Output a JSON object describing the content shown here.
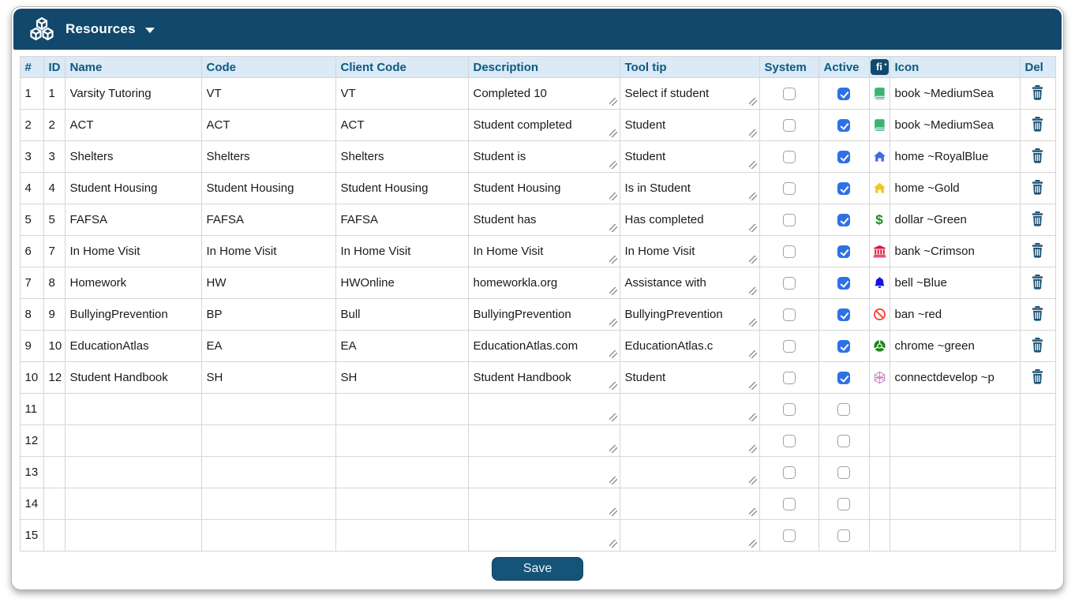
{
  "header": {
    "title": "Resources"
  },
  "table": {
    "columns": [
      "#",
      "ID",
      "Name",
      "Code",
      "Client Code",
      "Description",
      "Tool tip",
      "System",
      "Active",
      "Icon",
      "Del"
    ],
    "fi_badge": "fi",
    "rows": [
      {
        "num": "1",
        "id": "1",
        "name": "Varsity Tutoring",
        "code": "VT",
        "client_code": "VT",
        "description": "Completed 10",
        "tooltip": "Select if student",
        "system": false,
        "active": true,
        "glyph": "book",
        "glyph_color": "#3CB371",
        "icon_value": "book ~MediumSea"
      },
      {
        "num": "2",
        "id": "2",
        "name": "ACT",
        "code": "ACT",
        "client_code": "ACT",
        "description": "Student completed",
        "tooltip": "Student",
        "system": false,
        "active": true,
        "glyph": "book",
        "glyph_color": "#3CB371",
        "icon_value": "book ~MediumSea"
      },
      {
        "num": "3",
        "id": "3",
        "name": "Shelters",
        "code": "Shelters",
        "client_code": "Shelters",
        "description": "Student is",
        "tooltip": "Student",
        "system": false,
        "active": true,
        "glyph": "home",
        "glyph_color": "#4169E1",
        "icon_value": "home ~RoyalBlue"
      },
      {
        "num": "4",
        "id": "4",
        "name": "Student Housing",
        "code": "Student Housing",
        "client_code": "Student Housing",
        "description": "Student Housing",
        "tooltip": "Is in Student",
        "system": false,
        "active": true,
        "glyph": "home",
        "glyph_color": "#F5C518",
        "icon_value": "home ~Gold"
      },
      {
        "num": "5",
        "id": "5",
        "name": "FAFSA",
        "code": "FAFSA",
        "client_code": "FAFSA",
        "description": "Student has",
        "tooltip": "Has completed",
        "system": false,
        "active": true,
        "glyph": "dollar",
        "glyph_color": "#1A8C1A",
        "icon_value": "dollar ~Green"
      },
      {
        "num": "6",
        "id": "7",
        "name": "In Home Visit",
        "code": "In Home Visit",
        "client_code": "In Home Visit",
        "description": "In Home Visit",
        "tooltip": "In Home Visit",
        "system": false,
        "active": true,
        "glyph": "bank",
        "glyph_color": "#DC143C",
        "icon_value": "bank ~Crimson"
      },
      {
        "num": "7",
        "id": "8",
        "name": "Homework",
        "code": "HW",
        "client_code": "HWOnline",
        "description": "homeworkla.org",
        "tooltip": "Assistance with",
        "system": false,
        "active": true,
        "glyph": "bell",
        "glyph_color": "#1414E6",
        "icon_value": "bell ~Blue"
      },
      {
        "num": "8",
        "id": "9",
        "name": "BullyingPrevention",
        "code": "BP",
        "client_code": "Bull",
        "description": "BullyingPrevention",
        "tooltip": "BullyingPrevention",
        "system": false,
        "active": true,
        "glyph": "ban",
        "glyph_color": "#FF3B30",
        "icon_value": "ban ~red"
      },
      {
        "num": "9",
        "id": "10",
        "name": "EducationAtlas",
        "code": "EA",
        "client_code": "EA",
        "description": "EducationAtlas.com",
        "tooltip": "EducationAtlas.c",
        "system": false,
        "active": true,
        "glyph": "chrome",
        "glyph_color": "#178717",
        "icon_value": "chrome ~green"
      },
      {
        "num": "10",
        "id": "12",
        "name": "Student Handbook",
        "code": "SH",
        "client_code": "SH",
        "description": "Student Handbook",
        "tooltip": "Student",
        "system": false,
        "active": true,
        "glyph": "connectdevelop",
        "glyph_color": "#C678C6",
        "icon_value": "connectdevelop ~p"
      },
      {
        "num": "11",
        "id": "",
        "name": "",
        "code": "",
        "client_code": "",
        "description": "",
        "tooltip": "",
        "system": false,
        "active": false,
        "glyph": "",
        "glyph_color": "",
        "icon_value": ""
      },
      {
        "num": "12",
        "id": "",
        "name": "",
        "code": "",
        "client_code": "",
        "description": "",
        "tooltip": "",
        "system": false,
        "active": false,
        "glyph": "",
        "glyph_color": "",
        "icon_value": ""
      },
      {
        "num": "13",
        "id": "",
        "name": "",
        "code": "",
        "client_code": "",
        "description": "",
        "tooltip": "",
        "system": false,
        "active": false,
        "glyph": "",
        "glyph_color": "",
        "icon_value": ""
      },
      {
        "num": "14",
        "id": "",
        "name": "",
        "code": "",
        "client_code": "",
        "description": "",
        "tooltip": "",
        "system": false,
        "active": false,
        "glyph": "",
        "glyph_color": "",
        "icon_value": ""
      },
      {
        "num": "15",
        "id": "",
        "name": "",
        "code": "",
        "client_code": "",
        "description": "",
        "tooltip": "",
        "system": false,
        "active": false,
        "glyph": "",
        "glyph_color": "",
        "icon_value": ""
      }
    ]
  },
  "footer": {
    "save_label": "Save"
  },
  "colors": {
    "header_bar": "#11486B",
    "header_row_bg": "#DCE9F6",
    "header_text": "#0B5A80",
    "active_checkbox": "#2E70E8",
    "save_button": "#155479",
    "trash_icon": "#1B5174"
  }
}
